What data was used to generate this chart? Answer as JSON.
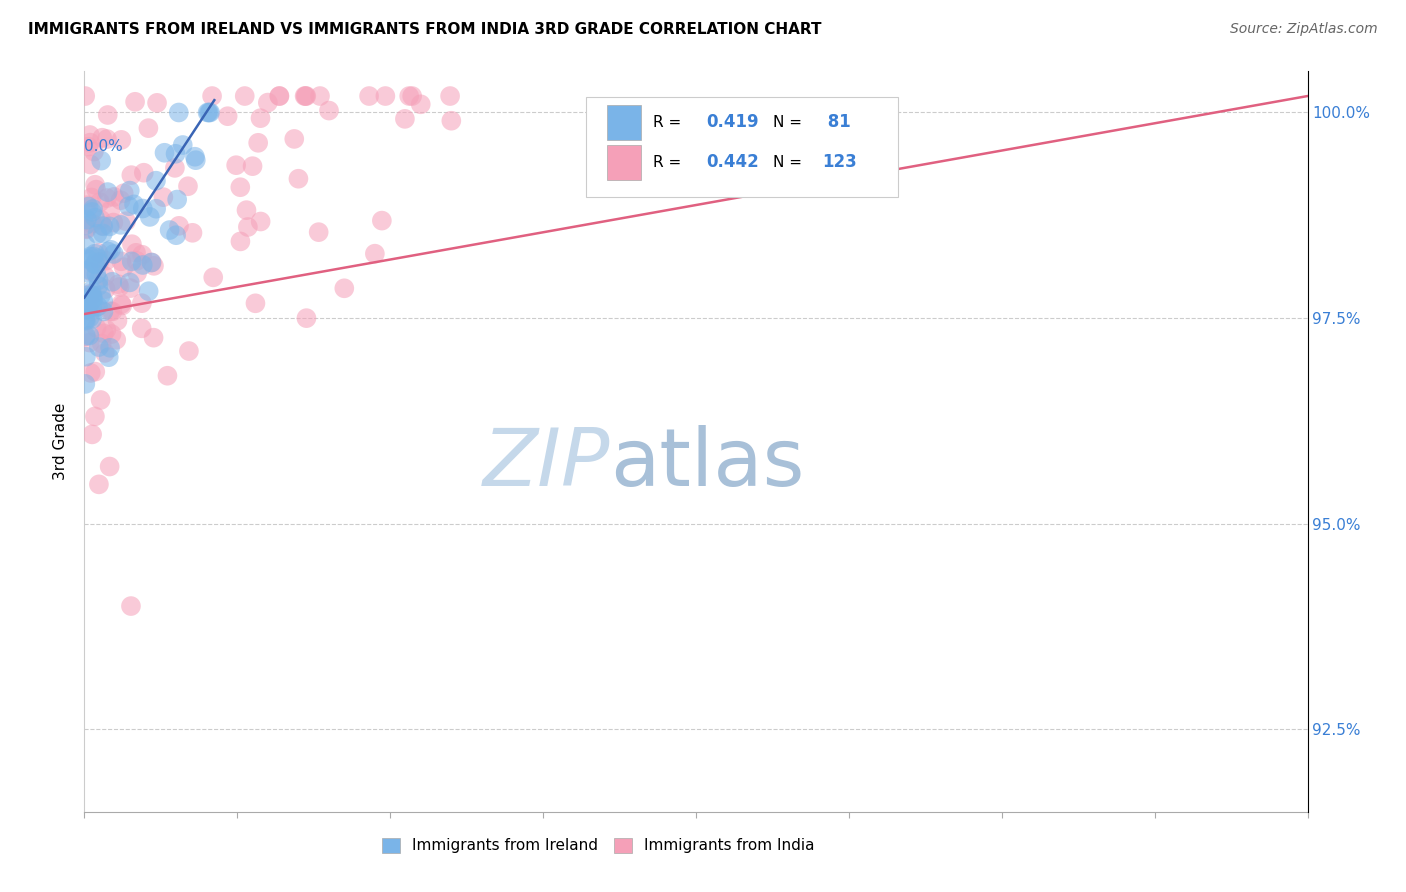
{
  "title": "IMMIGRANTS FROM IRELAND VS IMMIGRANTS FROM INDIA 3RD GRADE CORRELATION CHART",
  "source": "Source: ZipAtlas.com",
  "ylabel": "3rd Grade",
  "ytick_labels": [
    "100.0%",
    "97.5%",
    "95.0%",
    "92.5%"
  ],
  "ytick_values": [
    1.0,
    0.975,
    0.95,
    0.925
  ],
  "legend_ireland": "Immigrants from Ireland",
  "legend_india": "Immigrants from India",
  "R_ireland": 0.419,
  "N_ireland": 81,
  "R_india": 0.442,
  "N_india": 123,
  "xmin": 0.0,
  "xmax": 0.8,
  "ymin": 0.915,
  "ymax": 1.005,
  "ireland_color": "#7ab4e8",
  "india_color": "#f5a0b8",
  "ireland_line_color": "#3a65b5",
  "india_line_color": "#e06080",
  "watermark_zip_color": "#c8d8e8",
  "watermark_atlas_color": "#b0c8e0",
  "title_fontsize": 11,
  "source_fontsize": 10,
  "scatter_size": 200,
  "scatter_alpha": 0.55
}
